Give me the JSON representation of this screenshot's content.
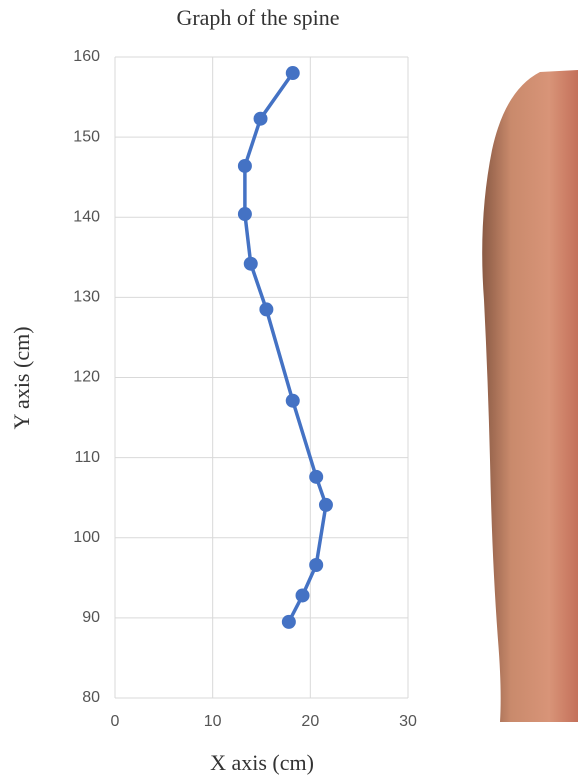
{
  "chart_data": {
    "type": "line",
    "title": "Graph of the spine",
    "x_label": "X axis (cm)",
    "y_label": "Y axis (cm)",
    "x": [
      18.2,
      14.9,
      13.3,
      13.3,
      13.9,
      15.5,
      18.2,
      20.6,
      21.6,
      20.6,
      19.2,
      17.8
    ],
    "values": [
      158.0,
      152.3,
      146.4,
      140.4,
      134.2,
      128.5,
      117.1,
      107.6,
      104.1,
      96.6,
      92.8,
      89.5
    ],
    "color": "#4472c4",
    "xlim": [
      0,
      30
    ],
    "xticks": [
      0,
      10,
      20,
      30
    ],
    "ylim": [
      80,
      160
    ],
    "yticks": [
      80,
      90,
      100,
      110,
      120,
      130,
      140,
      150,
      160
    ],
    "grid": true
  }
}
